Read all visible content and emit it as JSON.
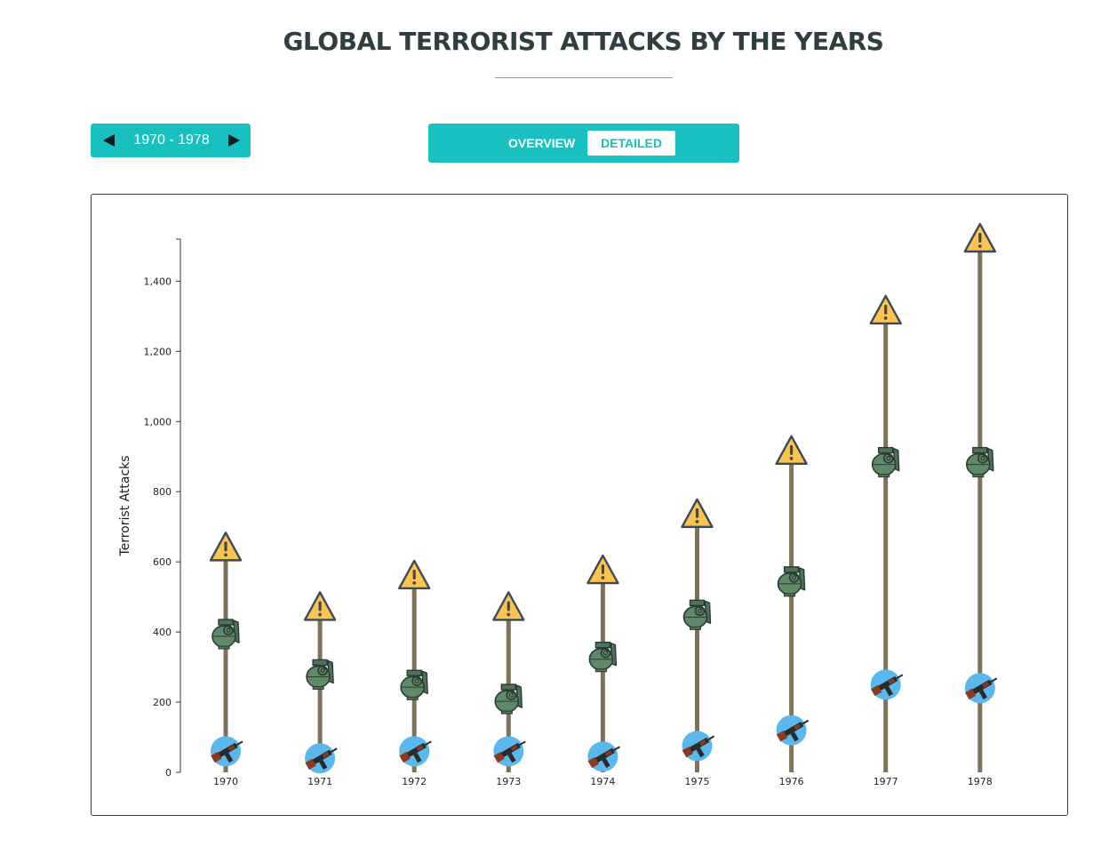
{
  "header": {
    "title": "GLOBAL TERRORIST ATTACKS BY THE YEARS"
  },
  "range_selector": {
    "label": "1970 - 1978"
  },
  "view_toggle": {
    "overview_label": "OVERVIEW",
    "detailed_label": "DETAILED",
    "active": "DETAILED"
  },
  "colors": {
    "accent": "#18c0c0",
    "stem": "#7d735c",
    "warning_fill": "#fcc44f",
    "grenade_fill": "#5f8a68",
    "gun_circle": "#5ab8ec"
  },
  "chart_data": {
    "type": "scatter",
    "title": "",
    "xlabel": "",
    "ylabel": "Terrorist Attacks",
    "ylim": [
      0,
      1520
    ],
    "yticks": [
      0,
      200,
      400,
      600,
      800,
      1000,
      1200,
      1400
    ],
    "ytick_labels": [
      "0",
      "200",
      "400",
      "600",
      "800",
      "1,000",
      "1,200",
      "1,400"
    ],
    "categories": [
      "1970",
      "1971",
      "1972",
      "1973",
      "1974",
      "1975",
      "1976",
      "1977",
      "1978"
    ],
    "series": [
      {
        "icon": "warning-icon",
        "values": [
          640,
          470,
          560,
          470,
          575,
          735,
          915,
          1315,
          1520
        ]
      },
      {
        "icon": "grenade-icon",
        "values": [
          390,
          275,
          245,
          205,
          325,
          445,
          540,
          880,
          880
        ]
      },
      {
        "icon": "rifle-icon",
        "values": [
          60,
          40,
          60,
          60,
          45,
          75,
          120,
          250,
          240
        ]
      }
    ]
  }
}
